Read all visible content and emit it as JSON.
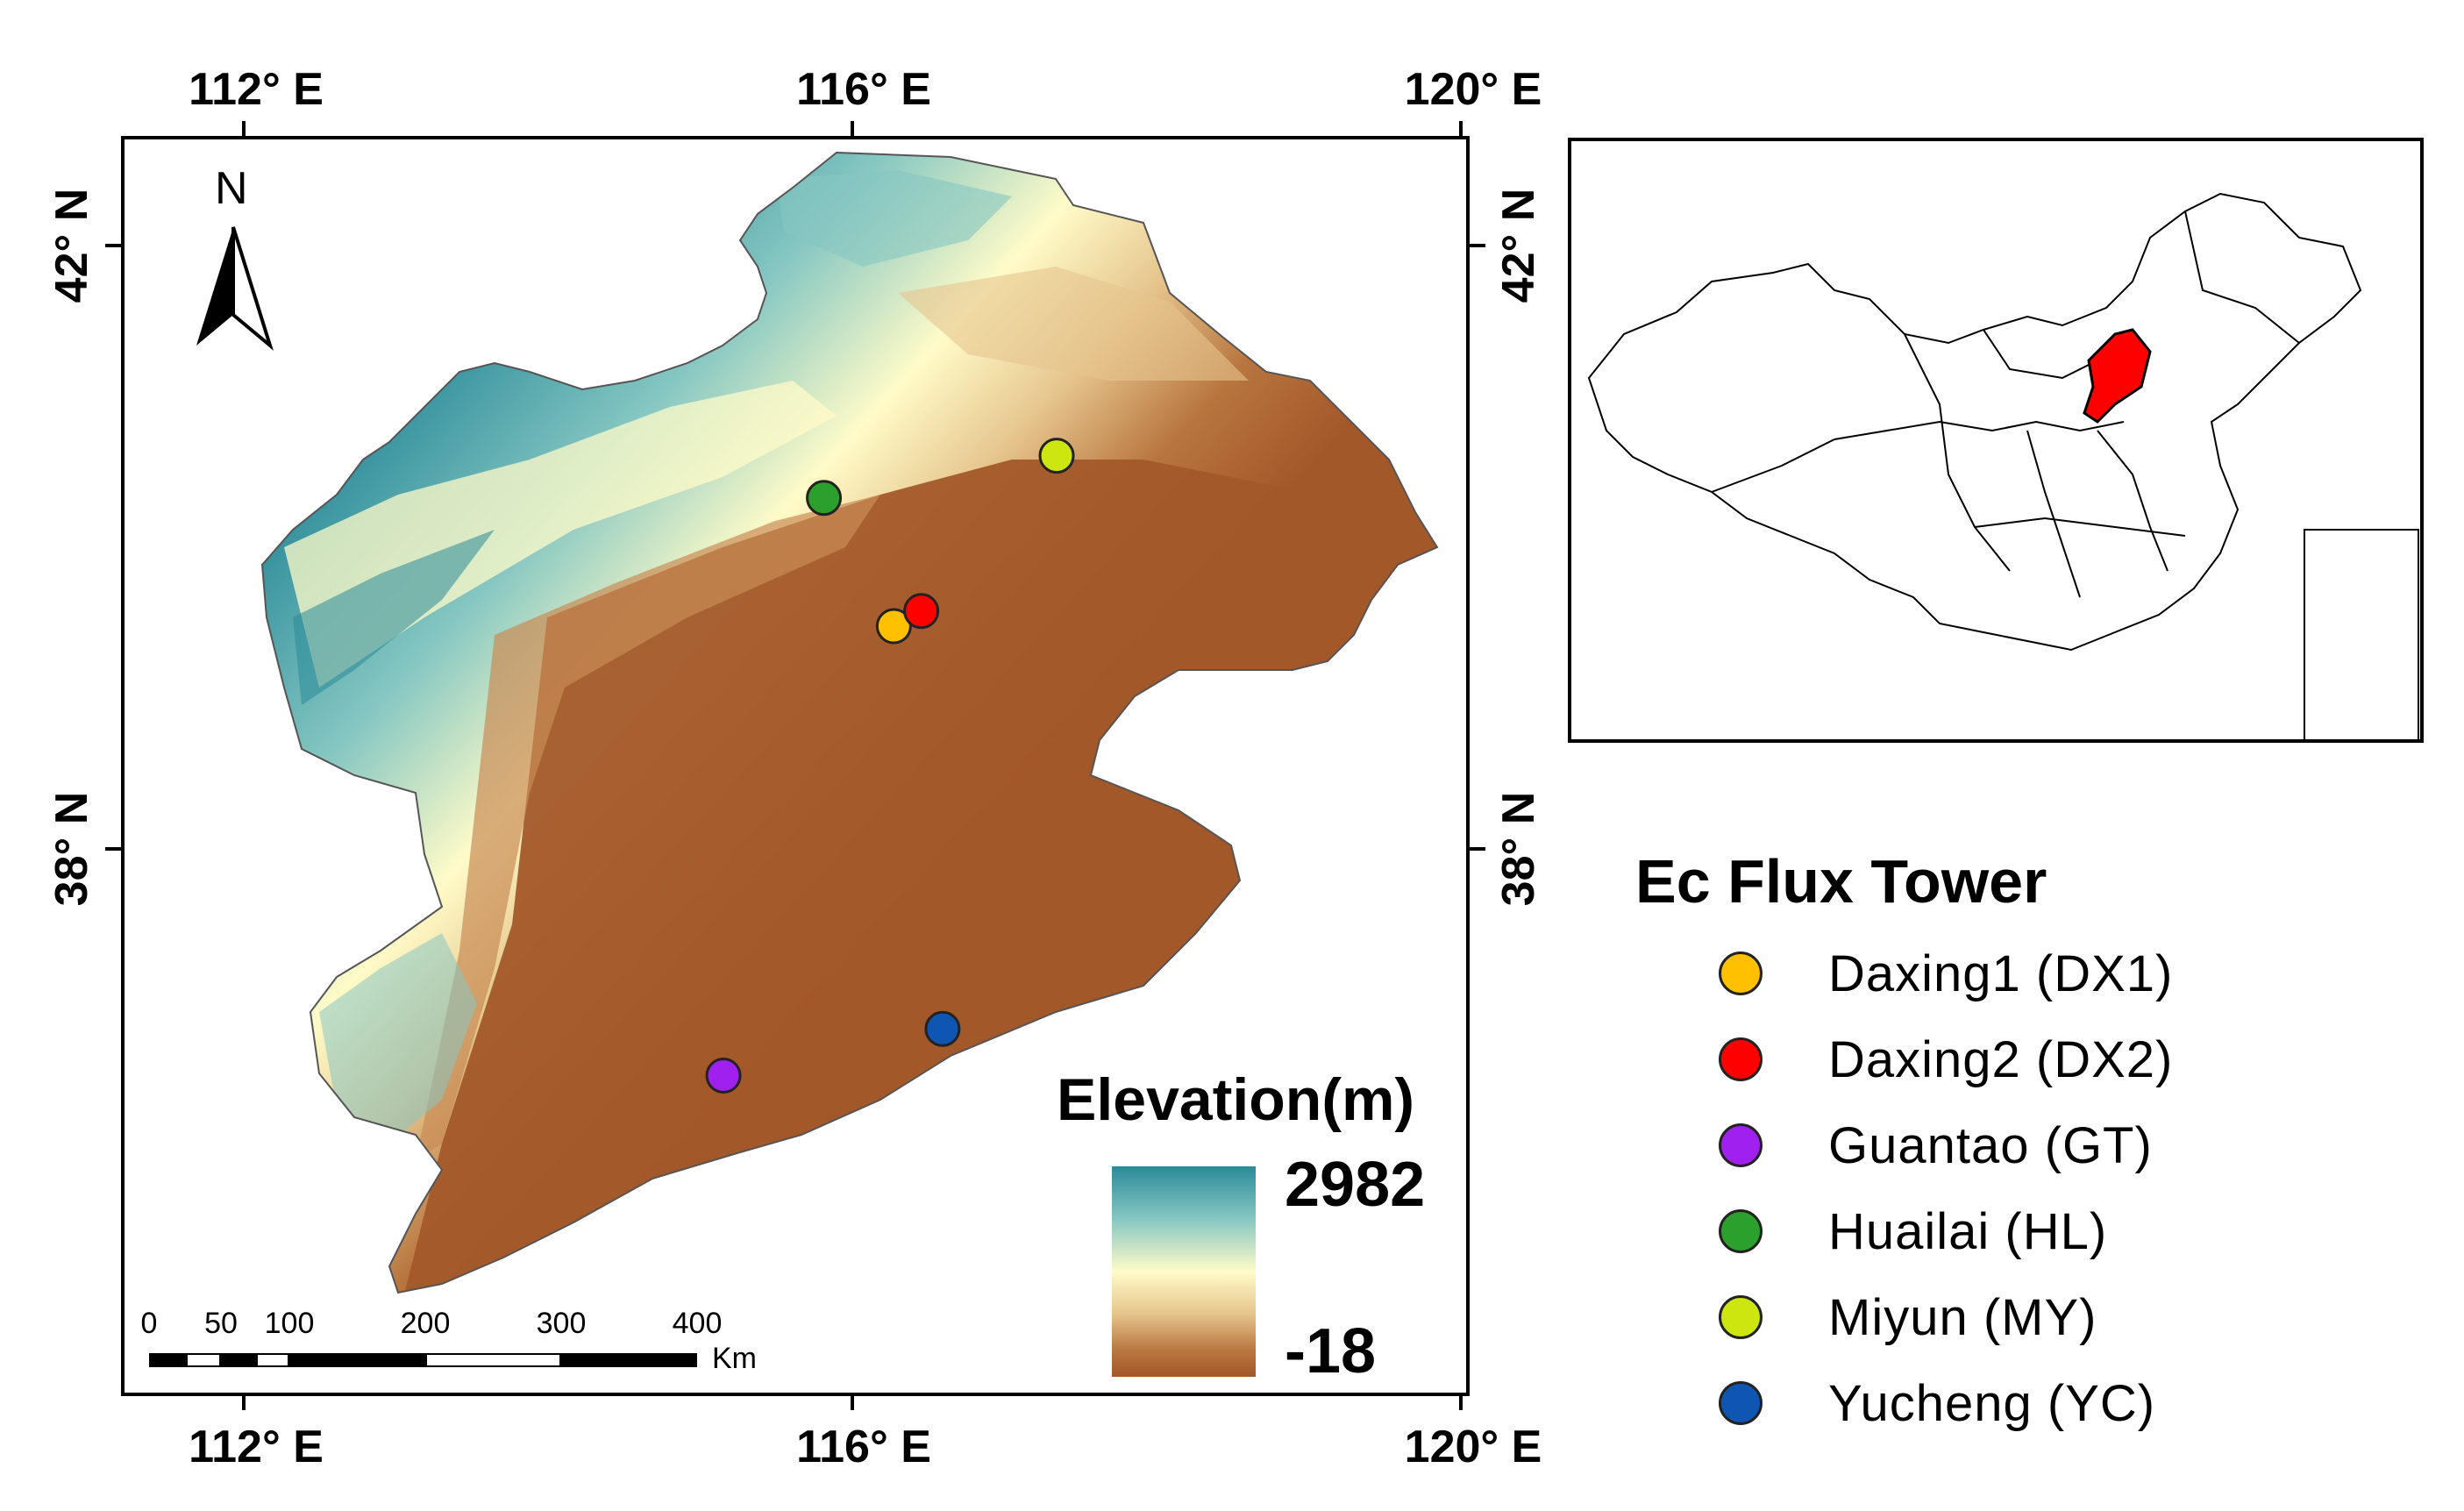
{
  "map": {
    "top_lon_labels": [
      "112° E",
      "116° E",
      "120° E"
    ],
    "bottom_lon_labels": [
      "112° E",
      "116° E",
      "120° E"
    ],
    "left_lat_labels": [
      "42° N",
      "38° N"
    ],
    "right_lat_labels": [
      "42° N",
      "38° N"
    ],
    "north_arrow_label": "N",
    "elevation_title": "Elevation(m)",
    "elevation_max": "2982",
    "elevation_min": "-18",
    "scale_numbers": [
      "0",
      "50",
      "100",
      "200",
      "300",
      "400"
    ],
    "scale_unit": "Km",
    "colors": {
      "high": "#2a8a99",
      "mid": "#fffbc8",
      "low": "#a3582a",
      "inset_region": "#ff0000"
    }
  },
  "legend": {
    "title": "Ec Flux Tower",
    "items": [
      {
        "label": "Daxing1 (DX1)",
        "color": "#ffc000"
      },
      {
        "label": "Daxing2 (DX2)",
        "color": "#ff0000"
      },
      {
        "label": "Guantao (GT)",
        "color": "#a020f0"
      },
      {
        "label": "Huailai (HL)",
        "color": "#2ca02c"
      },
      {
        "label": "Miyun (MY)",
        "color": "#cde60f"
      },
      {
        "label": "Yucheng (YC)",
        "color": "#0f56b3"
      }
    ]
  },
  "stations": [
    {
      "id": "DX1",
      "lon": 116.25,
      "lat": 39.5,
      "color": "#ffc000"
    },
    {
      "id": "DX2",
      "lon": 116.43,
      "lat": 39.6,
      "color": "#ff0000"
    },
    {
      "id": "GT",
      "lon": 115.13,
      "lat": 36.52,
      "color": "#a020f0"
    },
    {
      "id": "HL",
      "lon": 115.79,
      "lat": 40.35,
      "color": "#2ca02c"
    },
    {
      "id": "MY",
      "lon": 117.32,
      "lat": 40.63,
      "color": "#cde60f"
    },
    {
      "id": "YC",
      "lon": 116.57,
      "lat": 36.83,
      "color": "#0f56b3"
    }
  ]
}
